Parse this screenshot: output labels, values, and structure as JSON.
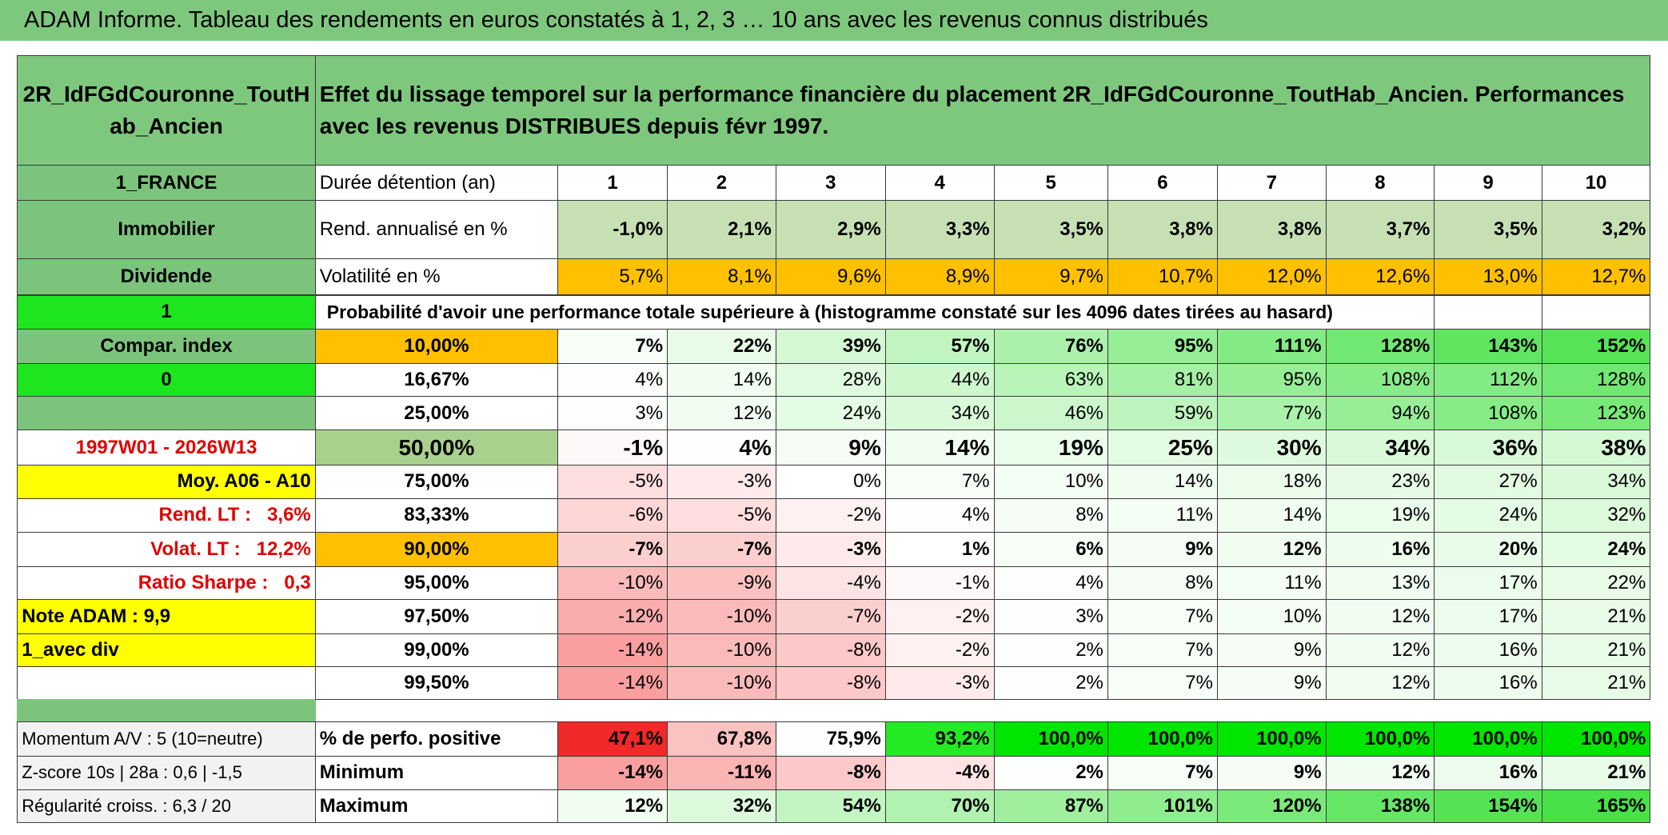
{
  "header": {
    "title": "ADAM Informe. Tableau des rendements en euros constatés à 1, 2, 3 … 10 ans avec les revenus connus distribués"
  },
  "table": {
    "name": "2R_IdFGdCouronne_ToutHab_Ancien",
    "description": "Effet du lissage temporel sur la performance financière du placement 2R_IdFGdCouronne_ToutHab_Ancien. Performances avec les revenus DISTRIBUES depuis févr 1997.",
    "side_labels": [
      "1_FRANCE",
      "Immobilier",
      "Dividende",
      "1",
      "Compar. index",
      "0",
      "1997W01 - 2026W13",
      "Moy. A06 - A10",
      "Rend. LT :   3,6%",
      "Volat. LT :   12,2%",
      "Ratio Sharpe :   0,3",
      "Note ADAM : 9,9",
      "1_avec div"
    ],
    "holding": {
      "label": "Durée détention (an)",
      "years": [
        1,
        2,
        3,
        4,
        5,
        6,
        7,
        8,
        9,
        10
      ]
    },
    "return": {
      "label": "Rend. annualisé en %",
      "values": [
        "-1,0%",
        "2,1%",
        "2,9%",
        "3,3%",
        "3,5%",
        "3,8%",
        "3,8%",
        "3,7%",
        "3,5%",
        "3,2%"
      ]
    },
    "volatility": {
      "label": "Volatilité en %",
      "values": [
        "5,7%",
        "8,1%",
        "9,6%",
        "8,9%",
        "9,7%",
        "10,7%",
        "12,0%",
        "12,6%",
        "13,0%",
        "12,7%"
      ]
    },
    "probability_caption": "Probabilité d'avoir une performance totale supérieure à (histogramme constaté sur les 4096 dates tirées au hasard)",
    "percentiles": [
      {
        "level": "10,00%",
        "values": [
          "7%",
          "22%",
          "39%",
          "57%",
          "76%",
          "95%",
          "111%",
          "128%",
          "143%",
          "152%"
        ]
      },
      {
        "level": "16,67%",
        "values": [
          "4%",
          "14%",
          "28%",
          "44%",
          "63%",
          "81%",
          "95%",
          "108%",
          "112%",
          "128%"
        ]
      },
      {
        "level": "25,00%",
        "values": [
          "3%",
          "12%",
          "24%",
          "34%",
          "46%",
          "59%",
          "77%",
          "94%",
          "108%",
          "123%"
        ]
      },
      {
        "level": "50,00%",
        "values": [
          "-1%",
          "4%",
          "9%",
          "14%",
          "19%",
          "25%",
          "30%",
          "34%",
          "36%",
          "38%"
        ]
      },
      {
        "level": "75,00%",
        "values": [
          "-5%",
          "-3%",
          "0%",
          "7%",
          "10%",
          "14%",
          "18%",
          "23%",
          "27%",
          "34%"
        ]
      },
      {
        "level": "83,33%",
        "values": [
          "-6%",
          "-5%",
          "-2%",
          "4%",
          "8%",
          "11%",
          "14%",
          "19%",
          "24%",
          "32%"
        ]
      },
      {
        "level": "90,00%",
        "values": [
          "-7%",
          "-7%",
          "-3%",
          "1%",
          "6%",
          "9%",
          "12%",
          "16%",
          "20%",
          "24%"
        ]
      },
      {
        "level": "95,00%",
        "values": [
          "-10%",
          "-9%",
          "-4%",
          "-1%",
          "4%",
          "8%",
          "11%",
          "13%",
          "17%",
          "22%"
        ]
      },
      {
        "level": "97,50%",
        "values": [
          "-12%",
          "-10%",
          "-7%",
          "-2%",
          "3%",
          "7%",
          "10%",
          "12%",
          "17%",
          "21%"
        ]
      },
      {
        "level": "99,00%",
        "values": [
          "-14%",
          "-10%",
          "-8%",
          "-2%",
          "2%",
          "7%",
          "9%",
          "12%",
          "16%",
          "21%"
        ]
      },
      {
        "level": "99,50%",
        "values": [
          "-14%",
          "-10%",
          "-8%",
          "-3%",
          "2%",
          "7%",
          "9%",
          "12%",
          "16%",
          "21%"
        ]
      }
    ],
    "footer": [
      {
        "side": "Momentum A/V : 5 (10=neutre)",
        "label": "% de perfo. positive",
        "values": [
          "47,1%",
          "67,8%",
          "75,9%",
          "93,2%",
          "100,0%",
          "100,0%",
          "100,0%",
          "100,0%",
          "100,0%",
          "100,0%"
        ]
      },
      {
        "side": "Z-score 10s | 28a : 0,6 | -1,5",
        "label": "Minimum",
        "values": [
          "-14%",
          "-11%",
          "-8%",
          "-4%",
          "2%",
          "7%",
          "9%",
          "12%",
          "16%",
          "21%"
        ]
      },
      {
        "side": "Régularité croiss. : 6,3 / 20",
        "label": "Maximum",
        "values": [
          "12%",
          "32%",
          "54%",
          "70%",
          "87%",
          "101%",
          "120%",
          "138%",
          "154%",
          "165%"
        ]
      }
    ]
  }
}
